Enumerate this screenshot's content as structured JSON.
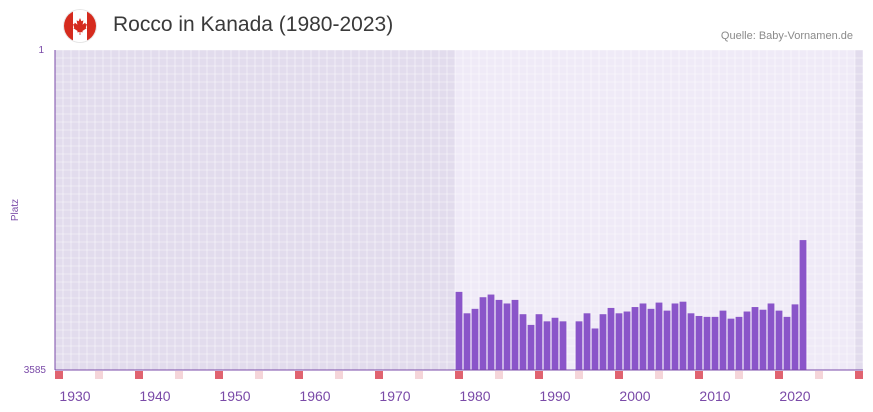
{
  "header": {
    "title": "Rocco in Kanada (1980-2023)",
    "source": "Quelle: Baby-Vornamen.de",
    "flag_icon": "canada-flag-icon"
  },
  "colors": {
    "bar": "#8a55c9",
    "axis": "#7a4aa8",
    "bg_outside": "#e2dced",
    "bg_inside": "#efeaf7",
    "grid": "#ffffff",
    "marker_red": "#e06370",
    "marker_pink": "#f5d5d9",
    "flag_red": "#d52b1e"
  },
  "chart_data": {
    "type": "bar",
    "title": "Rocco in Kanada (1980-2023)",
    "ylabel": "Platz",
    "xlabel": "",
    "y_inverted": true,
    "ylim": [
      1,
      3585
    ],
    "y_tick_labels": [
      "1",
      "3585"
    ],
    "x_tick_labels": [
      "1930",
      "1940",
      "1950",
      "1960",
      "1970",
      "1980",
      "1990",
      "2000",
      "2010",
      "2020"
    ],
    "data_range_years": [
      1978,
      2028
    ],
    "x": [
      1978,
      1979,
      1980,
      1981,
      1982,
      1983,
      1984,
      1985,
      1986,
      1987,
      1988,
      1989,
      1990,
      1991,
      1992,
      1993,
      1994,
      1995,
      1996,
      1997,
      1998,
      1999,
      2000,
      2001,
      2002,
      2003,
      2004,
      2005,
      2006,
      2007,
      2008,
      2009,
      2010,
      2011,
      2012,
      2013,
      2014,
      2015,
      2016,
      2017,
      2018,
      2019,
      2020,
      2021,
      2022
    ],
    "values": [
      2710,
      2950,
      2900,
      2770,
      2740,
      2800,
      2840,
      2800,
      2960,
      3080,
      2960,
      3040,
      3000,
      3040,
      null,
      3040,
      2950,
      3120,
      2960,
      2890,
      2950,
      2930,
      2880,
      2840,
      2900,
      2830,
      2920,
      2840,
      2820,
      2950,
      2980,
      2990,
      2990,
      2920,
      3010,
      2990,
      2930,
      2880,
      2910,
      2840,
      2920,
      2990,
      2850,
      2130,
      null
    ]
  }
}
